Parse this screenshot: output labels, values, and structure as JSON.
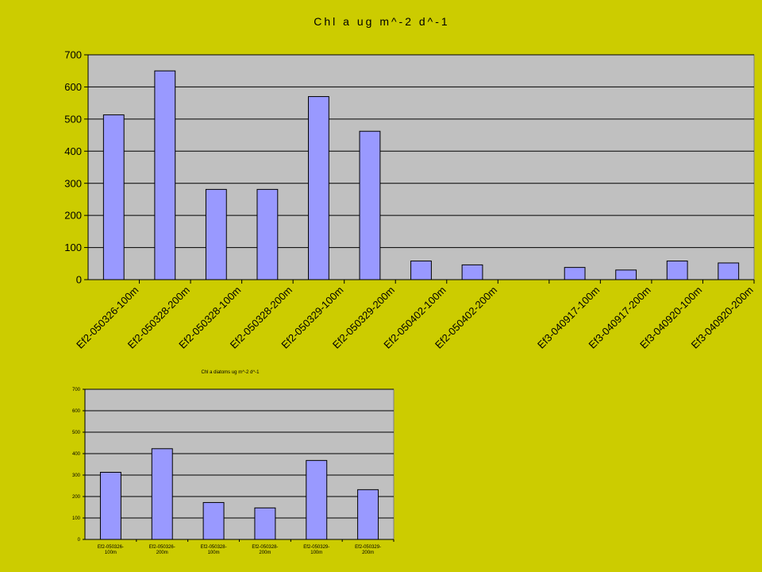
{
  "chart_data": [
    {
      "type": "bar",
      "title": "Chl a ug m^-2 d^-1",
      "categories": [
        "Ef2-050326-100m",
        "Ef2-050328-200m",
        "Ef2-050328-100m",
        "Ef2-050328-200m",
        "Ef2-050329-100m",
        "Ef2-050329-200m",
        "Ef2-050402-100m",
        "Ef2-050402-200m",
        "",
        "Ef3-040917-100m",
        "Ef3-040917-200m",
        "Ef3-040920-100m",
        "Ef3-040920-200m"
      ],
      "values": [
        513,
        650,
        281,
        281,
        570,
        462,
        58,
        46,
        null,
        38,
        30,
        58,
        52
      ],
      "ylim": [
        0,
        700
      ],
      "yticks": [
        0,
        100,
        200,
        300,
        400,
        500,
        600,
        700
      ],
      "xlabel": "",
      "ylabel": "",
      "grid": true,
      "colors": {
        "bar": "#9999ff",
        "plot_bg": "#c0c0c0",
        "page_bg": "#cccc00",
        "bar_stroke": "#000000"
      }
    },
    {
      "type": "bar",
      "title": "Chl a diatoms ug m^-2 d^-1",
      "categories": [
        [
          "Ef2-050326-",
          "100m"
        ],
        [
          "Ef2-050326-",
          "200m"
        ],
        [
          "Ef2-050328-",
          "100m"
        ],
        [
          "Ef2-050328-",
          "200m"
        ],
        [
          "Ef2-050329-",
          "100m"
        ],
        [
          "Ef2-050329-",
          "200m"
        ]
      ],
      "values": [
        313,
        423,
        172,
        147,
        368,
        232
      ],
      "ylim": [
        0,
        700
      ],
      "yticks": [
        0,
        100,
        200,
        300,
        400,
        500,
        600,
        700
      ],
      "xlabel": "",
      "ylabel": "",
      "grid": true,
      "colors": {
        "bar": "#9999ff",
        "plot_bg": "#c0c0c0",
        "page_bg": "#cccc00",
        "bar_stroke": "#000000"
      }
    }
  ]
}
